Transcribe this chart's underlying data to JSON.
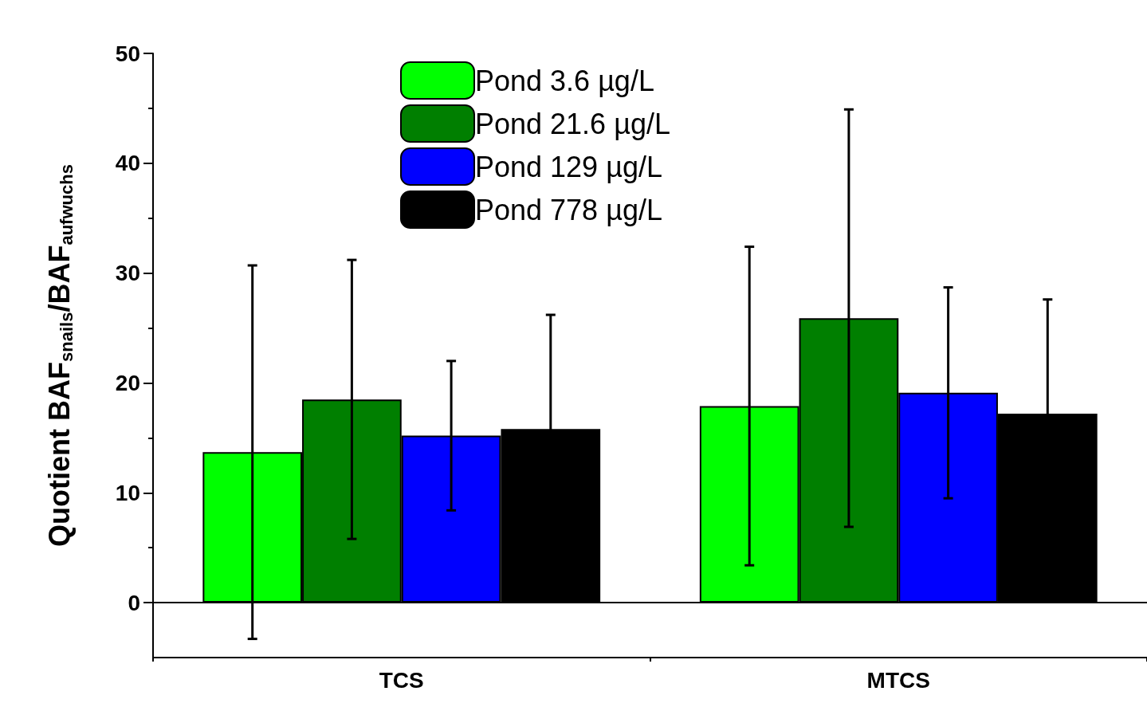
{
  "chart_data": {
    "type": "bar",
    "ylabel": "Quotient BAF$_{snails}$/BAF$_{aufwuchs}$",
    "categories": [
      "TCS",
      "MTCS"
    ],
    "series": [
      {
        "name": "Pond 3.6 µg/L",
        "color": "#00ff00",
        "values": [
          13.7,
          17.9
        ],
        "errors": [
          17,
          14.5
        ]
      },
      {
        "name": "Pond 21.6 µg/L",
        "color": "#007f00",
        "values": [
          18.5,
          25.9
        ],
        "errors": [
          12.7,
          19
        ]
      },
      {
        "name": "Pond 129 µg/L",
        "color": "#0000ff",
        "values": [
          15.2,
          19.1
        ],
        "errors": [
          6.8,
          9.6
        ]
      },
      {
        "name": "Pond 778 µg/L",
        "color": "#000000",
        "values": [
          15.8,
          17.2
        ],
        "errors": [
          10.4,
          10.4
        ]
      }
    ],
    "ylim": [
      -5,
      50
    ],
    "yticks": [
      0,
      10,
      20,
      30,
      40,
      50
    ],
    "ref_lines": [
      {
        "axis": "y",
        "value": 0,
        "label": null
      }
    ],
    "legend": "top",
    "grid": false
  }
}
